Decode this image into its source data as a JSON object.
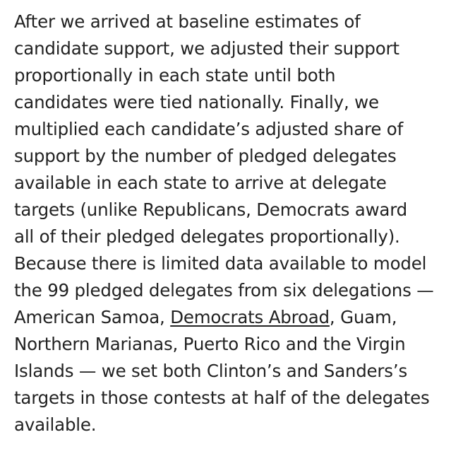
{
  "article": {
    "lines": [
      "After we arrived at baseline estimates of",
      "candidate support, we adjusted their support",
      "proportionally in each state until both",
      "candidates were tied nationally. Finally, we",
      "multiplied each candidate’s adjusted share of",
      "support by the number of pledged delegates",
      "available in each state to arrive at delegate",
      "targets (unlike Republicans, Democrats award",
      "all of their pledged delegates proportionally).",
      "Because there is limited data available to model",
      "the 99 pledged delegates from six delegations —"
    ],
    "line12_before": "American Samoa, ",
    "link_text": "Democrats Abroad",
    "line12_after": ", Guam,",
    "lines_end": [
      "Northern Marianas, Puerto Rico and the Virgin",
      "Islands — we set both Clinton’s and Sanders’s",
      "targets in those contests at half of the delegates",
      "available."
    ]
  }
}
